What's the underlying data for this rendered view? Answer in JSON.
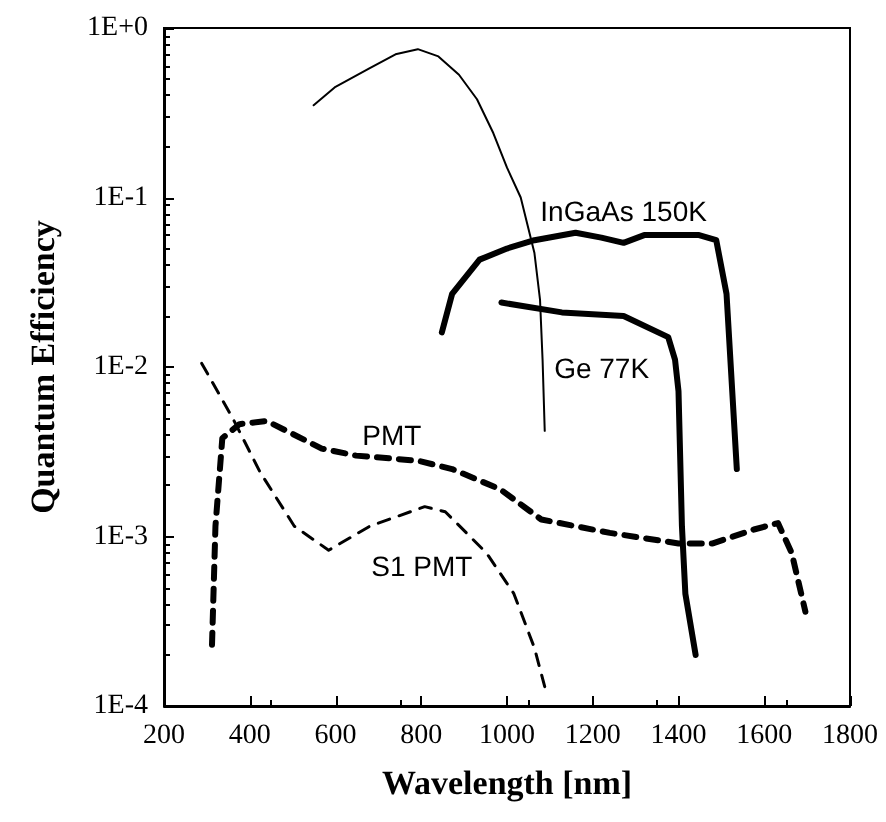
{
  "chart_data": {
    "type": "line",
    "xlabel": "Wavelength [nm]",
    "ylabel": "Quantum Efficiency",
    "log": "y",
    "grid": false,
    "marker": "none",
    "xlim": [
      200,
      1800
    ],
    "xticks": [
      200,
      400,
      600,
      800,
      1000,
      1200,
      1400,
      1600,
      1800
    ],
    "ylim": [
      0.0001,
      1
    ],
    "yticks": [
      {
        "value": 0.0001,
        "label": "1E-4"
      },
      {
        "value": 0.001,
        "label": "1E-3"
      },
      {
        "value": 0.01,
        "label": "1E-2"
      },
      {
        "value": 0.1,
        "label": "1E-1"
      },
      {
        "value": 1,
        "label": "1E+0"
      }
    ],
    "series": [
      {
        "color": "#000000",
        "line_style": "solid",
        "x": [
          549,
          600,
          680,
          740,
          792,
          840,
          888,
          930,
          968,
          1000,
          1032,
          1064,
          1077,
          1083,
          1088
        ],
        "values": [
          0.35,
          0.45,
          0.58,
          0.7,
          0.75,
          0.68,
          0.53,
          0.38,
          0.24,
          0.15,
          0.1,
          0.047,
          0.025,
          0.011,
          0.0042
        ]
      },
      {
        "name": "InGaAs 150K",
        "color": "#000000",
        "line_style": "solid",
        "x": [
          848,
          872,
          936,
          1000,
          1064,
          1160,
          1220,
          1272,
          1320,
          1400,
          1448,
          1488,
          1512,
          1536
        ],
        "values": [
          0.016,
          0.027,
          0.043,
          0.05,
          0.056,
          0.062,
          0.058,
          0.054,
          0.06,
          0.06,
          0.06,
          0.056,
          0.027,
          0.0025
        ]
      },
      {
        "name": "Ge 77K",
        "color": "#000000",
        "line_style": "solid",
        "x": [
          987,
          1128,
          1272,
          1376,
          1392,
          1400,
          1408,
          1416,
          1440
        ],
        "values": [
          0.024,
          0.021,
          0.02,
          0.015,
          0.011,
          0.0072,
          0.00115,
          0.00046,
          0.0002
        ]
      },
      {
        "name": "PMT",
        "color": "#000000",
        "line_style": "dashed",
        "x": [
          312,
          320,
          336,
          376,
          440,
          568,
          648,
          792,
          872,
          984,
          1080,
          1240,
          1400,
          1480,
          1576,
          1632,
          1664,
          1696
        ],
        "values": [
          0.00023,
          0.00115,
          0.0038,
          0.0046,
          0.0048,
          0.0033,
          0.003,
          0.0028,
          0.0025,
          0.0019,
          0.00126,
          0.00105,
          0.00091,
          0.00091,
          0.0011,
          0.0012,
          0.0008,
          0.00036
        ]
      },
      {
        "name": "S1 PMT",
        "color": "#000000",
        "line_style": "dashed",
        "x": [
          288,
          360,
          424,
          504,
          584,
          680,
          808,
          856,
          952,
          1016,
          1064,
          1088
        ],
        "values": [
          0.0105,
          0.005,
          0.0024,
          0.00115,
          0.00083,
          0.00115,
          0.0015,
          0.0014,
          0.0008,
          0.00046,
          0.00022,
          0.00013
        ]
      }
    ]
  }
}
